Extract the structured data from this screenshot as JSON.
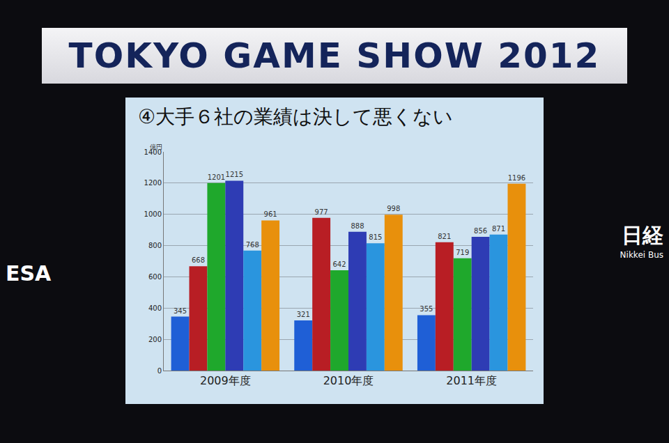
{
  "banner": "TOKYO GAME SHOW 2012",
  "side_logos": {
    "left": "ESA",
    "right": [
      "日経",
      "Nikkei Bus"
    ]
  },
  "chart_data": {
    "type": "bar",
    "title": "④大手６社の業績は決して悪くない",
    "ylabel": "億円",
    "categories": [
      "2009年度",
      "2010年度",
      "2011年度"
    ],
    "series": [
      {
        "color": "#1f5fd6",
        "values": [
          345,
          321,
          355
        ]
      },
      {
        "color": "#b81e24",
        "values": [
          668,
          977,
          821
        ]
      },
      {
        "color": "#1fa82c",
        "values": [
          1201,
          642,
          719
        ]
      },
      {
        "color": "#2e3cb4",
        "values": [
          1215,
          888,
          856
        ]
      },
      {
        "color": "#2a95de",
        "values": [
          768,
          815,
          871
        ]
      },
      {
        "color": "#e8900c",
        "values": [
          961,
          998,
          1196
        ]
      }
    ],
    "ylim": [
      0,
      1400
    ],
    "yticks": [
      0,
      200,
      400,
      600,
      800,
      1000,
      1200,
      1400
    ],
    "grid": true,
    "data_labels": true
  }
}
